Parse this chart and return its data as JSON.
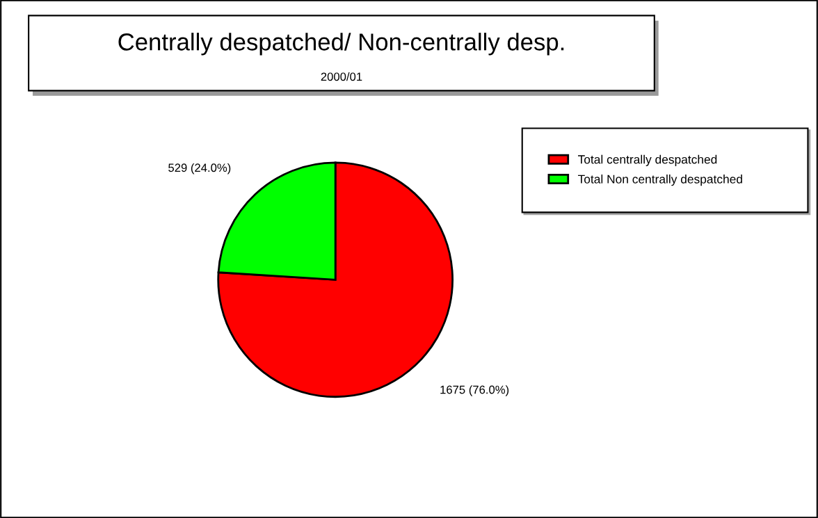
{
  "chart_data": {
    "type": "pie",
    "title": "Centrally despatched/ Non-centrally desp.",
    "subtitle": "2000/01",
    "categories": [
      "Total centrally despatched",
      "Total Non centrally despatched"
    ],
    "values": [
      1675,
      529
    ],
    "value_labels": [
      "1675 (76.0%)",
      "529 (24.0%)"
    ],
    "colors": [
      "#ff0000",
      "#00ff00"
    ],
    "legend": "top right"
  }
}
